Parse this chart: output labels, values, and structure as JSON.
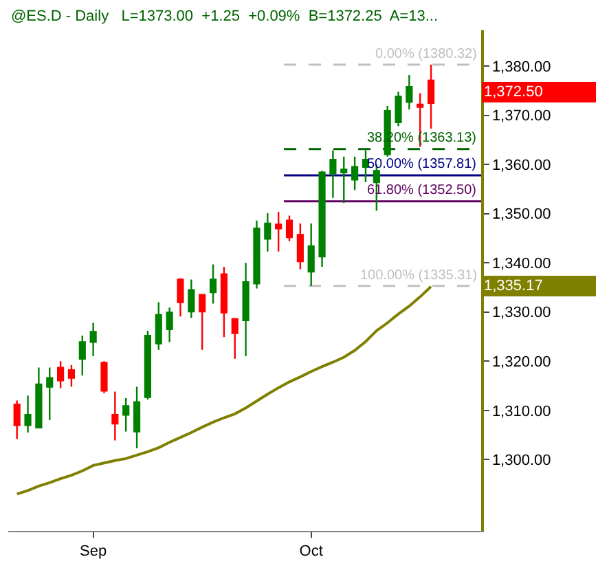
{
  "chart_data": {
    "type": "candlestick",
    "title": "@ES.D - Daily   L=1373.00  +1.25  +0.09%  B=1372.25  A=13...",
    "categories": [
      null,
      null,
      null,
      null,
      null,
      null,
      null,
      "Sep",
      null,
      null,
      null,
      null,
      null,
      null,
      null,
      null,
      null,
      null,
      null,
      null,
      null,
      null,
      null,
      null,
      null,
      null,
      null,
      "Oct",
      null,
      null,
      null,
      null,
      null,
      null,
      null,
      null,
      null,
      null,
      null
    ],
    "ohlc": [
      [
        1311.2,
        1312.0,
        1304.2,
        1307.0
      ],
      [
        1307.0,
        1313.0,
        1305.5,
        1309.1
      ],
      [
        1306.5,
        1318.7,
        1306.5,
        1315.3
      ],
      [
        1314.8,
        1318.7,
        1308.0,
        1316.6
      ],
      [
        1318.7,
        1320.0,
        1314.5,
        1316.1
      ],
      [
        1318.2,
        1319.2,
        1314.8,
        1316.6
      ],
      [
        1320.5,
        1325.2,
        1317.1,
        1323.9
      ],
      [
        1323.9,
        1327.8,
        1321.0,
        1326.0
      ],
      [
        1319.7,
        1320.0,
        1313.5,
        1314.0
      ],
      [
        1309.1,
        1313.8,
        1303.9,
        1307.3
      ],
      [
        1309.1,
        1312.5,
        1305.7,
        1310.9
      ],
      [
        1305.7,
        1314.8,
        1302.3,
        1311.7
      ],
      [
        1312.7,
        1326.2,
        1312.2,
        1325.2
      ],
      [
        1323.6,
        1332.0,
        1322.3,
        1329.4
      ],
      [
        1326.5,
        1330.9,
        1323.9,
        1329.9
      ],
      [
        1336.6,
        1336.9,
        1329.1,
        1332.0
      ],
      [
        1330.1,
        1336.6,
        1328.8,
        1334.5
      ],
      [
        1333.5,
        1333.5,
        1322.3,
        1330.1
      ],
      [
        1334.0,
        1339.7,
        1331.7,
        1336.6
      ],
      [
        1337.7,
        1339.2,
        1324.9,
        1329.9
      ],
      [
        1328.6,
        1328.6,
        1320.5,
        1325.7
      ],
      [
        1328.3,
        1340.0,
        1321.0,
        1336.1
      ],
      [
        1335.8,
        1348.6,
        1334.8,
        1347.0
      ],
      [
        1344.9,
        1350.1,
        1342.3,
        1348.0
      ],
      [
        1347.8,
        1350.4,
        1342.3,
        1347.0
      ],
      [
        1348.6,
        1349.6,
        1344.4,
        1345.2
      ],
      [
        1345.7,
        1348.0,
        1338.7,
        1340.3
      ],
      [
        1338.2,
        1348.0,
        1335.31,
        1343.4
      ],
      [
        1341.3,
        1358.7,
        1339.2,
        1358.4
      ],
      [
        1358.2,
        1362.9,
        1353.2,
        1361.0
      ],
      [
        1358.4,
        1361.6,
        1352.2,
        1359.0
      ],
      [
        1356.9,
        1361.6,
        1354.8,
        1359.5
      ],
      [
        1359.5,
        1362.9,
        1356.4,
        1361.0
      ],
      [
        1356.4,
        1360.0,
        1350.6,
        1358.7
      ],
      [
        1362.1,
        1371.9,
        1361.6,
        1370.9
      ],
      [
        1368.6,
        1374.8,
        1367.8,
        1373.8
      ],
      [
        1372.7,
        1378.2,
        1371.2,
        1375.8
      ],
      [
        1372.2,
        1374.5,
        1363.6,
        1371.7
      ],
      [
        1377.1,
        1380.32,
        1367.3,
        1372.5
      ]
    ],
    "colors": [
      "#ff0000",
      "#008000",
      "#008000",
      "#008000",
      "#ff0000",
      "#ff0000",
      "#008000",
      "#008000",
      "#ff0000",
      "#ff0000",
      "#008000",
      "#008000",
      "#008000",
      "#008000",
      "#008000",
      "#ff0000",
      "#008000",
      "#ff0000",
      "#008000",
      "#ff0000",
      "#ff0000",
      "#008000",
      "#008000",
      "#008000",
      "#ff0000",
      "#ff0000",
      "#ff0000",
      "#008000",
      "#008000",
      "#008000",
      "#008000",
      "#008000",
      "#008000",
      "#008000",
      "#008000",
      "#008000",
      "#008000",
      "#ff0000",
      "#ff0000"
    ],
    "series": [
      {
        "type": "line",
        "color": "#808000",
        "values": [
          1293.0,
          1293.7,
          1294.6,
          1295.3,
          1296.1,
          1296.8,
          1297.7,
          1298.8,
          1299.3,
          1299.8,
          1300.2,
          1300.9,
          1301.6,
          1302.4,
          1303.5,
          1304.5,
          1305.5,
          1306.6,
          1307.6,
          1308.5,
          1309.3,
          1310.5,
          1311.9,
          1313.3,
          1314.6,
          1315.8,
          1316.8,
          1317.9,
          1318.9,
          1319.8,
          1320.8,
          1322.2,
          1324.0,
          1326.2,
          1327.8,
          1329.6,
          1331.2,
          1333.1,
          1335.17
        ]
      }
    ],
    "ylim": [
      1285.5,
      1387.3
    ],
    "yticks": [
      {
        "value": 1300,
        "label": "1,300.00"
      },
      {
        "value": 1310,
        "label": "1,310.00"
      },
      {
        "value": 1320,
        "label": "1,320.00"
      },
      {
        "value": 1330,
        "label": "1,330.00"
      },
      {
        "value": 1340,
        "label": "1,340.00"
      },
      {
        "value": 1350,
        "label": "1,350.00"
      },
      {
        "value": 1360,
        "label": "1,360.00"
      },
      {
        "value": 1370,
        "label": "1,370.00"
      },
      {
        "value": 1380,
        "label": "1,380.00"
      }
    ],
    "ref_lines": [
      {
        "axis": "y",
        "value": 1380.32,
        "label": "0.00% (1380.32)",
        "color": "#c0c0c0",
        "line_style": "dashed"
      },
      {
        "axis": "y",
        "value": 1363.13,
        "label": "38.20% (1363.13)",
        "color": "#006400",
        "line_style": "dashed"
      },
      {
        "axis": "y",
        "value": 1357.81,
        "label": "50.00% (1357.81)",
        "color": "#000080",
        "line_style": "solid"
      },
      {
        "axis": "y",
        "value": 1352.5,
        "label": "61.80% (1352.50)",
        "color": "#600060",
        "line_style": "solid"
      },
      {
        "axis": "y",
        "value": 1335.31,
        "label": "100.00% (1335.31)",
        "color": "#c0c0c0",
        "line_style": "dashed"
      }
    ],
    "annotations": [
      "1,372.50",
      "1,335.17"
    ],
    "grid": false
  }
}
